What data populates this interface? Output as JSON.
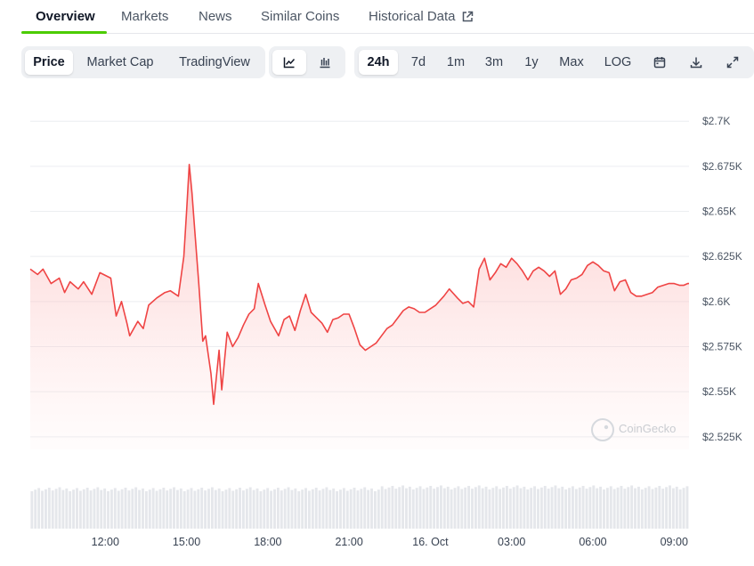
{
  "tabs": [
    {
      "label": "Overview",
      "active": true
    },
    {
      "label": "Markets",
      "active": false
    },
    {
      "label": "News",
      "active": false
    },
    {
      "label": "Similar Coins",
      "active": false
    },
    {
      "label": "Historical Data",
      "active": false,
      "icon": "external-link-icon"
    }
  ],
  "toolbar": {
    "chart_types": [
      {
        "label": "Price",
        "active": true
      },
      {
        "label": "Market Cap",
        "active": false
      },
      {
        "label": "TradingView",
        "active": false
      }
    ],
    "view_modes": [
      {
        "icon": "line-chart-icon",
        "active": true
      },
      {
        "icon": "candlestick-chart-icon",
        "active": false
      }
    ],
    "ranges": [
      {
        "label": "24h",
        "active": true
      },
      {
        "label": "7d",
        "active": false
      },
      {
        "label": "1m",
        "active": false
      },
      {
        "label": "3m",
        "active": false
      },
      {
        "label": "1y",
        "active": false
      },
      {
        "label": "Max",
        "active": false
      },
      {
        "label": "LOG",
        "active": false
      }
    ],
    "actions": [
      "calendar-icon",
      "download-icon",
      "fullscreen-icon"
    ]
  },
  "watermark": "CoinGecko",
  "colors": {
    "line": "#ef4444",
    "fill_top": "#fca5a5",
    "accent": "#4bcc00",
    "volume": "#e5e7eb"
  },
  "chart_data": {
    "type": "area",
    "title": "",
    "xlabel": "",
    "ylabel": "",
    "y_axis_position": "right",
    "ylim": [
      2518,
      2708
    ],
    "y_ticks": [
      2700,
      2675,
      2650,
      2625,
      2600,
      2575,
      2550,
      2525
    ],
    "y_tick_labels": [
      "$2.7K",
      "$2.675K",
      "$2.65K",
      "$2.625K",
      "$2.6K",
      "$2.575K",
      "$2.55K",
      "$2.525K"
    ],
    "x_ticks": [
      2,
      5,
      8,
      11,
      14,
      17,
      20,
      23
    ],
    "x_tick_labels": [
      "12:00",
      "15:00",
      "18:00",
      "21:00",
      "16. Oct",
      "03:00",
      "06:00",
      "09:00"
    ],
    "xlim": [
      -0.77,
      23.55
    ],
    "grid": true,
    "series": [
      {
        "values": [
          [
            -0.77,
            2618
          ],
          [
            -0.5,
            2615
          ],
          [
            -0.3,
            2618
          ],
          [
            0.0,
            2610
          ],
          [
            0.3,
            2613
          ],
          [
            0.5,
            2605
          ],
          [
            0.7,
            2611
          ],
          [
            1.0,
            2607
          ],
          [
            1.2,
            2611
          ],
          [
            1.5,
            2604
          ],
          [
            1.8,
            2616
          ],
          [
            2.2,
            2613
          ],
          [
            2.4,
            2592
          ],
          [
            2.6,
            2600
          ],
          [
            2.8,
            2588
          ],
          [
            2.9,
            2581
          ],
          [
            3.2,
            2589
          ],
          [
            3.4,
            2585
          ],
          [
            3.6,
            2598
          ],
          [
            3.9,
            2602
          ],
          [
            4.2,
            2605
          ],
          [
            4.4,
            2606
          ],
          [
            4.7,
            2603
          ],
          [
            4.9,
            2625
          ],
          [
            5.0,
            2650
          ],
          [
            5.1,
            2676
          ],
          [
            5.2,
            2660
          ],
          [
            5.3,
            2640
          ],
          [
            5.45,
            2610
          ],
          [
            5.6,
            2578
          ],
          [
            5.7,
            2581
          ],
          [
            5.9,
            2560
          ],
          [
            6.0,
            2543
          ],
          [
            6.2,
            2573
          ],
          [
            6.3,
            2551
          ],
          [
            6.5,
            2583
          ],
          [
            6.7,
            2575
          ],
          [
            6.9,
            2580
          ],
          [
            7.1,
            2587
          ],
          [
            7.3,
            2593
          ],
          [
            7.5,
            2596
          ],
          [
            7.65,
            2610
          ],
          [
            7.9,
            2598
          ],
          [
            8.1,
            2589
          ],
          [
            8.4,
            2581
          ],
          [
            8.6,
            2590
          ],
          [
            8.8,
            2592
          ],
          [
            9.0,
            2584
          ],
          [
            9.2,
            2595
          ],
          [
            9.4,
            2604
          ],
          [
            9.6,
            2594
          ],
          [
            9.8,
            2591
          ],
          [
            10.0,
            2588
          ],
          [
            10.2,
            2583
          ],
          [
            10.4,
            2590
          ],
          [
            10.6,
            2591
          ],
          [
            10.8,
            2593
          ],
          [
            11.0,
            2593
          ],
          [
            11.2,
            2585
          ],
          [
            11.4,
            2576
          ],
          [
            11.6,
            2573
          ],
          [
            11.8,
            2575
          ],
          [
            12.0,
            2577
          ],
          [
            12.2,
            2581
          ],
          [
            12.4,
            2585
          ],
          [
            12.6,
            2587
          ],
          [
            12.8,
            2591
          ],
          [
            13.0,
            2595
          ],
          [
            13.2,
            2597
          ],
          [
            13.4,
            2596
          ],
          [
            13.6,
            2594
          ],
          [
            13.8,
            2594
          ],
          [
            14.0,
            2596
          ],
          [
            14.2,
            2598
          ],
          [
            14.5,
            2603
          ],
          [
            14.7,
            2607
          ],
          [
            15.0,
            2602
          ],
          [
            15.2,
            2599
          ],
          [
            15.4,
            2600
          ],
          [
            15.6,
            2597
          ],
          [
            15.8,
            2618
          ],
          [
            16.0,
            2624
          ],
          [
            16.2,
            2612
          ],
          [
            16.4,
            2616
          ],
          [
            16.6,
            2621
          ],
          [
            16.8,
            2619
          ],
          [
            17.0,
            2624
          ],
          [
            17.2,
            2621
          ],
          [
            17.4,
            2617
          ],
          [
            17.6,
            2612
          ],
          [
            17.8,
            2617
          ],
          [
            18.0,
            2619
          ],
          [
            18.2,
            2617
          ],
          [
            18.4,
            2614
          ],
          [
            18.6,
            2617
          ],
          [
            18.8,
            2604
          ],
          [
            19.0,
            2607
          ],
          [
            19.2,
            2612
          ],
          [
            19.4,
            2613
          ],
          [
            19.6,
            2615
          ],
          [
            19.8,
            2620
          ],
          [
            20.0,
            2622
          ],
          [
            20.2,
            2620
          ],
          [
            20.4,
            2617
          ],
          [
            20.6,
            2616
          ],
          [
            20.8,
            2606
          ],
          [
            21.0,
            2611
          ],
          [
            21.2,
            2612
          ],
          [
            21.4,
            2605
          ],
          [
            21.6,
            2603
          ],
          [
            21.8,
            2603
          ],
          [
            22.0,
            2604
          ],
          [
            22.2,
            2605
          ],
          [
            22.4,
            2608
          ],
          [
            22.6,
            2609
          ],
          [
            22.8,
            2610
          ],
          [
            23.0,
            2610
          ],
          [
            23.2,
            2609
          ],
          [
            23.35,
            2609
          ],
          [
            23.5,
            2610
          ],
          [
            23.55,
            2610
          ]
        ]
      }
    ]
  }
}
